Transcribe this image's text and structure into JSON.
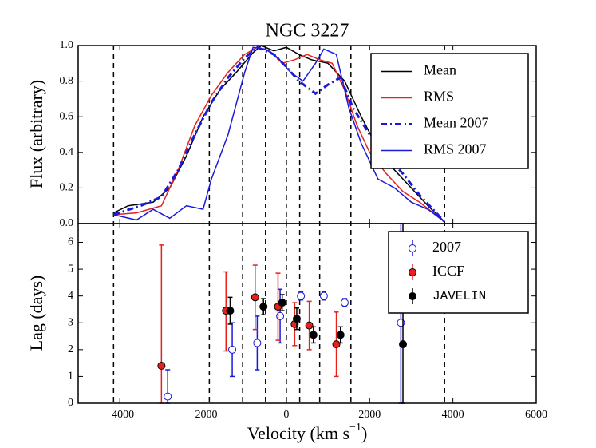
{
  "chart_data": [
    {
      "type": "line",
      "title": "NGC 3227",
      "ylabel": "Flux (arbitrary)",
      "xlim": [
        -5000,
        6000
      ],
      "ylim": [
        0,
        1
      ],
      "yticks": [
        {
          "value": 0,
          "label": "0.0"
        },
        {
          "value": 0.2,
          "label": "0.2"
        },
        {
          "value": 0.4,
          "label": "0.4"
        },
        {
          "value": 0.6,
          "label": "0.6"
        },
        {
          "value": 0.8,
          "label": "0.8"
        },
        {
          "value": 1,
          "label": "1.0"
        }
      ],
      "vlines": [
        -4150,
        -1850,
        -1050,
        -500,
        0,
        320,
        800,
        1550,
        3800
      ],
      "legend": "upper right",
      "series": [
        {
          "name": "Mean",
          "color": "#000000",
          "style": "solid",
          "x": [
            -4150,
            -3800,
            -3200,
            -2800,
            -2400,
            -2000,
            -1600,
            -1200,
            -800,
            -600,
            -300,
            0,
            300,
            600,
            1000,
            1400,
            1800,
            2200,
            2600,
            3000,
            3400,
            3800
          ],
          "values": [
            0.06,
            0.1,
            0.12,
            0.2,
            0.38,
            0.6,
            0.75,
            0.85,
            0.96,
            1.0,
            0.97,
            0.99,
            0.95,
            0.92,
            0.9,
            0.8,
            0.6,
            0.42,
            0.3,
            0.2,
            0.1,
            0.01
          ]
        },
        {
          "name": "RMS",
          "color": "#e8211d",
          "style": "solid",
          "x": [
            -4150,
            -3600,
            -3000,
            -2600,
            -2200,
            -1800,
            -1400,
            -1000,
            -700,
            -400,
            -100,
            200,
            500,
            800,
            1100,
            1400,
            1700,
            2000,
            2400,
            2800,
            3200,
            3800
          ],
          "values": [
            0.05,
            0.06,
            0.1,
            0.3,
            0.55,
            0.72,
            0.85,
            0.95,
            0.99,
            0.97,
            0.9,
            0.92,
            0.95,
            0.92,
            0.9,
            0.75,
            0.55,
            0.4,
            0.28,
            0.18,
            0.12,
            0.01
          ]
        },
        {
          "name": "Mean 2007",
          "color": "#1a1adb",
          "style": "dashdot",
          "x": [
            -4150,
            -3500,
            -3000,
            -2600,
            -2200,
            -1800,
            -1400,
            -1000,
            -700,
            -300,
            0,
            300,
            700,
            1000,
            1300,
            1600,
            2000,
            2400,
            2800,
            3200,
            3800
          ],
          "values": [
            0.05,
            0.1,
            0.15,
            0.3,
            0.5,
            0.68,
            0.82,
            0.93,
            0.99,
            0.95,
            0.88,
            0.8,
            0.73,
            0.78,
            0.82,
            0.65,
            0.5,
            0.38,
            0.28,
            0.16,
            0.01
          ]
        },
        {
          "name": "RMS 2007",
          "color": "#1a1adb",
          "style": "solid",
          "x": [
            -4150,
            -3600,
            -3200,
            -2800,
            -2400,
            -2000,
            -1800,
            -1400,
            -1000,
            -800,
            -500,
            -200,
            100,
            400,
            700,
            900,
            1200,
            1500,
            1800,
            2200,
            2600,
            3000,
            3400,
            3800
          ],
          "values": [
            0.05,
            0.02,
            0.08,
            0.03,
            0.1,
            0.08,
            0.25,
            0.5,
            0.85,
            0.99,
            0.98,
            0.93,
            0.85,
            0.8,
            0.9,
            0.98,
            0.95,
            0.65,
            0.45,
            0.25,
            0.2,
            0.12,
            0.08,
            0.01
          ]
        }
      ]
    },
    {
      "type": "errorbar",
      "ylabel": "Lag (days)",
      "xlabel": {
        "text": "Velocity (km s",
        "superscript": "−1",
        "suffix": ")"
      },
      "xlim": [
        -5000,
        6000
      ],
      "ylim": [
        0,
        6.7
      ],
      "xticks": [
        {
          "value": -4000,
          "label": "−4000"
        },
        {
          "value": -2000,
          "label": "−2000"
        },
        0,
        2000,
        4000,
        6000
      ],
      "yticks": [
        0,
        1,
        2,
        3,
        4,
        5,
        6
      ],
      "legend": "upper right",
      "series": [
        {
          "name": "2007",
          "color": "#1a1adb",
          "marker": "open",
          "x": [
            -2850,
            -1300,
            -700,
            -150,
            350,
            900,
            1400,
            2750
          ],
          "values": [
            0.25,
            2.0,
            2.25,
            3.25,
            4.0,
            4.0,
            3.75,
            3.0
          ],
          "err_low": [
            0.25,
            1.0,
            1.0,
            1.0,
            0.15,
            0.15,
            0.15,
            3.0
          ],
          "err_high": [
            1.0,
            1.0,
            1.0,
            1.0,
            0.15,
            0.15,
            0.15,
            3.7
          ]
        },
        {
          "name": "ICCF",
          "color": "#e8211d",
          "marker": "filled",
          "x": [
            -3000,
            -1450,
            -750,
            -200,
            200,
            550,
            1200
          ],
          "values": [
            1.4,
            3.45,
            3.95,
            3.6,
            2.95,
            2.9,
            2.2
          ],
          "err_low": [
            1.4,
            1.5,
            1.2,
            1.25,
            0.8,
            0.9,
            1.2
          ],
          "err_high": [
            4.5,
            1.45,
            1.2,
            1.25,
            0.8,
            0.9,
            1.2
          ]
        },
        {
          "name": "JAVELIN",
          "color": "#000000",
          "marker": "filled",
          "x": [
            -1350,
            -550,
            -100,
            250,
            650,
            1300,
            2800
          ],
          "values": [
            3.45,
            3.6,
            3.75,
            3.15,
            2.55,
            2.55,
            2.2
          ],
          "err_low": [
            0.5,
            0.3,
            0.3,
            0.4,
            0.3,
            0.3,
            2.2
          ],
          "err_high": [
            0.5,
            0.3,
            0.3,
            0.4,
            0.3,
            0.3,
            4.5
          ]
        }
      ]
    }
  ]
}
